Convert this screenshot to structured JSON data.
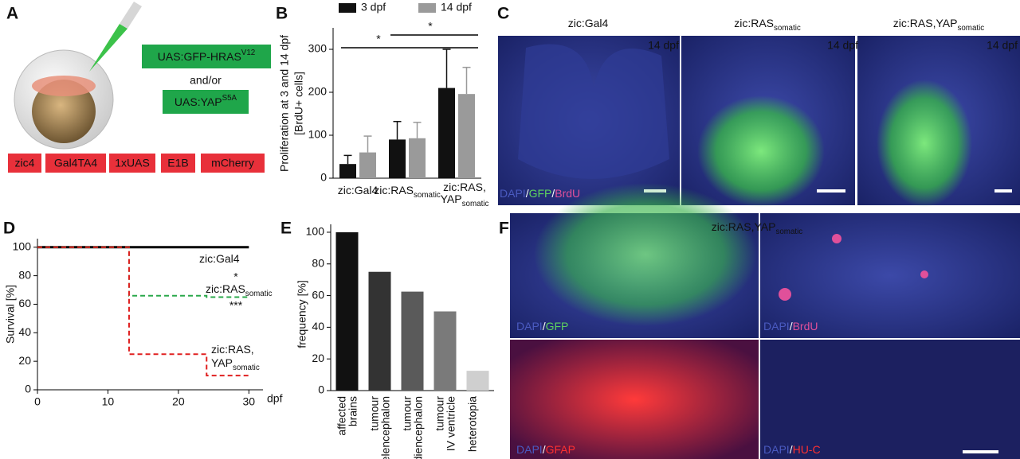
{
  "panel_labels": [
    "A",
    "B",
    "C",
    "D",
    "E",
    "F"
  ],
  "construct": {
    "gfp": [
      [
        "UAS:GFP-HRAS",
        "V12"
      ]
    ],
    "andor": "and/or",
    "yap": [
      [
        "UAS:YAP",
        "S5A"
      ]
    ],
    "elements": [
      "zic4",
      "Gal4TA4",
      "1xUAS",
      "E1B",
      "mCherry"
    ]
  },
  "chart_data": [
    {
      "type": "bar",
      "y_label": [
        "Proliferation at 3 and 14 dpf",
        "[BrdU+ cells]"
      ],
      "categories": [
        [
          [
            "zic:Gal4"
          ]
        ],
        [
          [
            "zic:RAS",
            "somatic"
          ]
        ],
        [
          [
            "zic:RAS,"
          ],
          [
            "YAP",
            "somatic"
          ]
        ]
      ],
      "series": [
        {
          "name": "3 dpf",
          "color": "#111111",
          "values": [
            33,
            90,
            210
          ],
          "errors": [
            20,
            42,
            90
          ]
        },
        {
          "name": "14 dpf",
          "color": "#9a9a9a",
          "values": [
            60,
            93,
            196
          ],
          "errors": [
            38,
            37,
            62
          ]
        }
      ],
      "ylim": [
        0,
        350
      ],
      "yticks": [
        0,
        100,
        200,
        300
      ],
      "annotations": [
        "*",
        "*"
      ]
    },
    {
      "type": "line",
      "y_label": "Survival [%]",
      "x_label": "dpf",
      "xlim": [
        0,
        32
      ],
      "xticks": [
        0,
        10,
        20,
        30
      ],
      "ylim": [
        0,
        106
      ],
      "yticks": [
        0,
        20,
        40,
        60,
        80,
        100
      ],
      "series": [
        {
          "name": [
            [
              "zic:Gal4"
            ]
          ],
          "color": "#000000",
          "dashed": false,
          "x": [
            0,
            30
          ],
          "values": [
            100,
            100
          ]
        },
        {
          "name": [
            [
              "zic:RAS",
              "somatic"
            ]
          ],
          "color": "#2aa84a",
          "dashed": true,
          "x": [
            0,
            13,
            13,
            24,
            24,
            30
          ],
          "values": [
            100,
            100,
            66,
            66,
            65,
            65
          ]
        },
        {
          "name": [
            [
              "zic:RAS,"
            ],
            [
              "YAP",
              "somatic"
            ]
          ],
          "color": "#e02020",
          "dashed": true,
          "x": [
            0,
            13,
            13,
            24,
            24,
            30
          ],
          "values": [
            100,
            100,
            25,
            25,
            10,
            10
          ]
        }
      ],
      "annotations": [
        {
          "text": "*",
          "color": "#111111"
        },
        {
          "text": "***",
          "color": "#e02020"
        }
      ]
    },
    {
      "type": "bar",
      "y_label": "frequency [%]",
      "categories": [
        [
          "affected",
          "brains"
        ],
        [
          "tumour",
          "telencephalon"
        ],
        [
          "tumour",
          "diencephalon"
        ],
        [
          "tumour",
          "IV ventricle"
        ],
        [
          "heterotopia"
        ]
      ],
      "values": [
        100,
        75,
        62.5,
        50,
        12.5
      ],
      "colors": [
        "#111111",
        "#333333",
        "#5a5a5a",
        "#7a7a7a",
        "#cfcfcf"
      ],
      "ylim": [
        0,
        105
      ],
      "yticks": [
        0,
        20,
        40,
        60,
        80,
        100
      ]
    }
  ],
  "images_c": {
    "titles": [
      [
        [
          "zic:Gal4"
        ]
      ],
      [
        [
          "zic:RAS",
          "somatic"
        ]
      ],
      [
        [
          "zic:RAS,YAP",
          "somatic"
        ]
      ]
    ],
    "stage": [
      "14 dpf",
      "14 dpf",
      "14 dpf"
    ],
    "stain": [
      "DAPI",
      "/",
      "GFP",
      "/",
      "BrdU"
    ]
  },
  "images_f": {
    "title": [
      [
        "zic:RAS,YAP",
        "somatic"
      ]
    ],
    "stains": [
      [
        "DAPI",
        "/",
        "GFP"
      ],
      [
        "DAPI",
        "/",
        "BrdU"
      ],
      [
        "DAPI",
        "/",
        "GFAP"
      ],
      [
        "DAPI",
        "/",
        "HU-C"
      ]
    ]
  },
  "stain_colors": {
    "DAPI": "#4a5ac0",
    "/": "#ffffff",
    "GFP": "#5fd35f",
    "BrdU": "#e0509a",
    "GFAP": "#ff3030",
    "HU-C": "#ff3030"
  }
}
